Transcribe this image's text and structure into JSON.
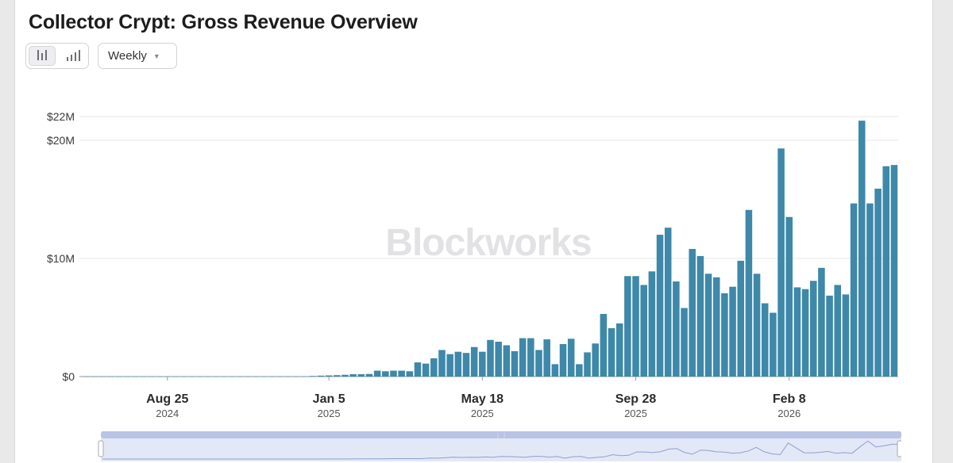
{
  "title": "Collector Crypt: Gross Revenue Overview",
  "controls": {
    "chart_toggle": [
      "bar-chart-icon",
      "volume-bars-icon"
    ],
    "interval": "Weekly"
  },
  "watermark": "Blockworks",
  "colors": {
    "bar": "#3e88a9",
    "grid": "#e6e6e8",
    "navigator": "#b9c3e4"
  },
  "chart_data": {
    "type": "bar",
    "title": "Collector Crypt: Gross Revenue Overview",
    "xlabel": "",
    "ylabel": "",
    "ylim": [
      0,
      22
    ],
    "y_unit": "$M",
    "y_ticks": [
      {
        "value": 0,
        "label": "$0"
      },
      {
        "value": 10,
        "label": "$10M"
      },
      {
        "value": 20,
        "label": "$20M"
      },
      {
        "value": 22,
        "label": "$22M"
      }
    ],
    "x_ticks": [
      {
        "label": "Aug 25",
        "year": "2024",
        "index": 10.5
      },
      {
        "label": "Jan 5",
        "year": "2025",
        "index": 30.5
      },
      {
        "label": "May 18",
        "year": "2025",
        "index": 49.5
      },
      {
        "label": "Sep 28",
        "year": "2025",
        "index": 68.5
      },
      {
        "label": "Feb 8",
        "year": "2026",
        "index": 87.5
      }
    ],
    "series": [
      {
        "name": "Gross Revenue",
        "values": [
          0.02,
          0.02,
          0.02,
          0.02,
          0.02,
          0.02,
          0.02,
          0.02,
          0.02,
          0.02,
          0.02,
          0.02,
          0.02,
          0.02,
          0.02,
          0.02,
          0.02,
          0.02,
          0.02,
          0.02,
          0.02,
          0.02,
          0.02,
          0.02,
          0.02,
          0.02,
          0.02,
          0.02,
          0.05,
          0.08,
          0.1,
          0.12,
          0.15,
          0.2,
          0.2,
          0.22,
          0.5,
          0.45,
          0.5,
          0.5,
          0.45,
          1.2,
          1.1,
          1.55,
          2.25,
          1.9,
          2.1,
          2.0,
          2.5,
          2.1,
          3.1,
          2.95,
          2.65,
          2.15,
          3.25,
          3.25,
          2.25,
          3.15,
          1.05,
          2.75,
          3.2,
          1.05,
          2.05,
          2.8,
          5.3,
          4.1,
          4.5,
          8.5,
          8.5,
          7.75,
          8.9,
          12.0,
          12.6,
          8.05,
          5.8,
          10.8,
          10.2,
          8.7,
          8.4,
          7.05,
          7.6,
          9.8,
          14.1,
          8.7,
          6.2,
          5.4,
          19.3,
          13.5,
          7.55,
          7.4,
          8.1,
          9.2,
          6.85,
          7.75,
          6.95,
          14.65,
          21.65,
          14.65,
          15.9,
          17.8,
          17.9
        ]
      }
    ]
  }
}
